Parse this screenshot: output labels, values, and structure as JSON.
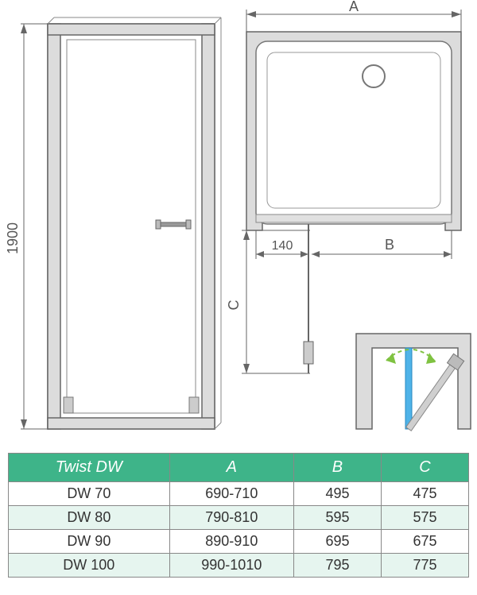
{
  "diagram": {
    "height_label": "1900",
    "offset_label": "140",
    "dim_A": "A",
    "dim_B": "B",
    "dim_C": "C",
    "colors": {
      "stroke": "#666666",
      "stroke_dark": "#555555",
      "frame_fill": "#dcdcdc",
      "glass_fill": "#ffffff",
      "header_bg": "#3eb489",
      "header_text": "#ffffff",
      "td_bg_alt": "#e6f5ef",
      "door_blue": "#4fb3e8",
      "arrow_green": "#7fc241"
    }
  },
  "table": {
    "title": "Twist DW",
    "columns": [
      "A",
      "B",
      "C"
    ],
    "rows": [
      {
        "model": "DW 70",
        "A": "690-710",
        "B": "495",
        "C": "475"
      },
      {
        "model": "DW 80",
        "A": "790-810",
        "B": "595",
        "C": "575"
      },
      {
        "model": "DW 90",
        "A": "890-910",
        "B": "695",
        "C": "675"
      },
      {
        "model": "DW 100",
        "A": "990-1010",
        "B": "795",
        "C": "775"
      }
    ],
    "col_widths": [
      "35%",
      "27%",
      "19%",
      "19%"
    ]
  }
}
